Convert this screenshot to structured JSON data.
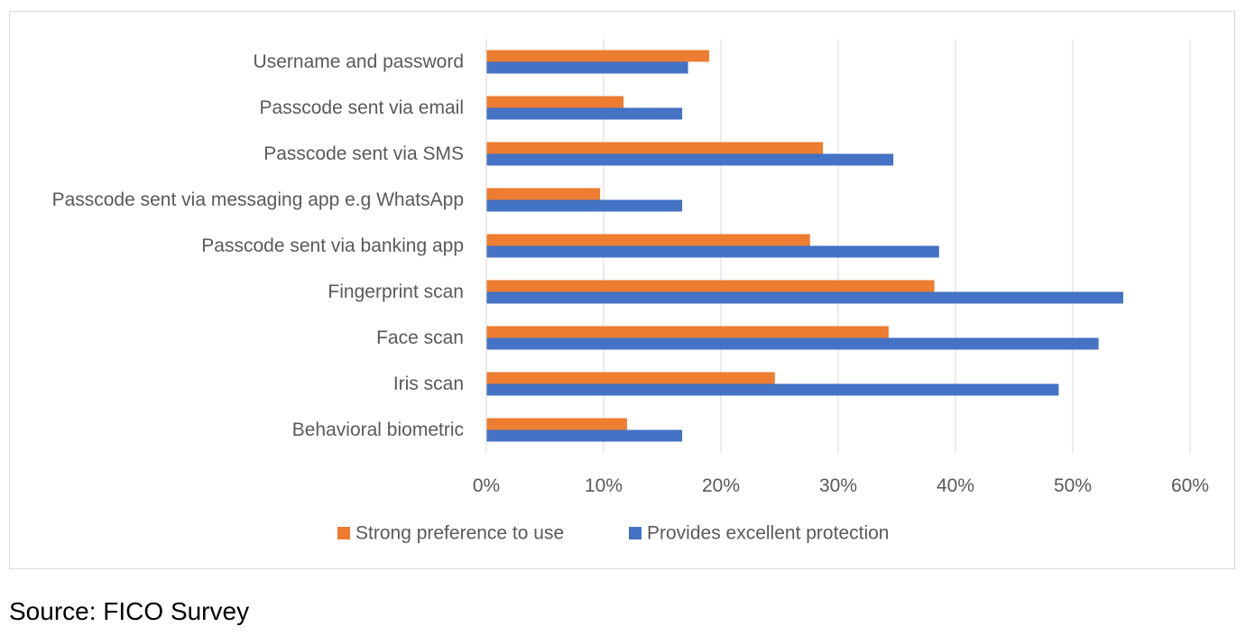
{
  "chart_data": {
    "type": "bar",
    "orientation": "horizontal",
    "categories": [
      "Username and password",
      "Passcode sent via email",
      "Passcode sent via SMS",
      "Passcode sent via messaging app e.g WhatsApp",
      "Passcode sent via banking app",
      "Fingerprint scan",
      "Face scan",
      "Iris scan",
      "Behavioral biometric"
    ],
    "series": [
      {
        "name": "Strong preference to use",
        "color": "#ED7D31",
        "values": [
          19,
          11.7,
          28.7,
          9.7,
          27.6,
          38.2,
          34.3,
          24.6,
          12
        ]
      },
      {
        "name": "Provides excellent protection",
        "color": "#4472C4",
        "values": [
          17.2,
          16.7,
          34.7,
          16.7,
          38.6,
          54.3,
          52.2,
          48.8,
          16.7
        ]
      }
    ],
    "xlim": [
      0,
      60
    ],
    "x_tick_labels": [
      "0%",
      "10%",
      "20%",
      "30%",
      "40%",
      "50%",
      "60%"
    ],
    "grid": "vertical",
    "legend_position": "bottom",
    "title": "",
    "xlabel": "",
    "ylabel": ""
  },
  "source_note": "Source: FICO Survey"
}
